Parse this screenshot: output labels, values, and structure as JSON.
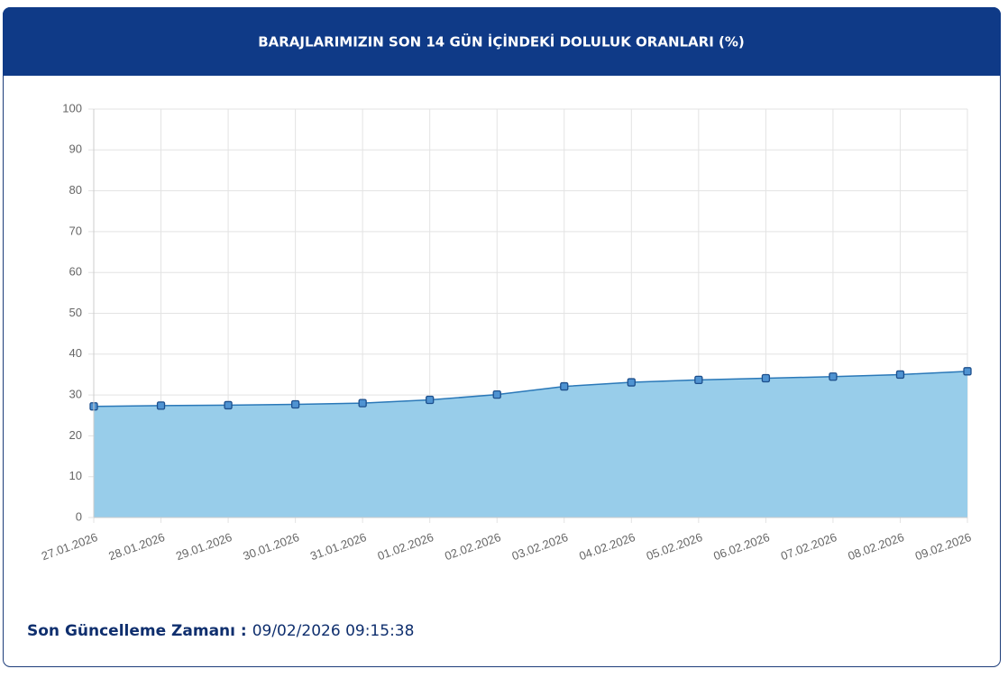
{
  "chart_data": {
    "type": "area",
    "title": "BARAJLARIMIZIN SON 14 GÜN İÇİNDEKİ DOLULUK ORANLARI (%)",
    "categories": [
      "27.01.2026",
      "28.01.2026",
      "29.01.2026",
      "30.01.2026",
      "31.01.2026",
      "01.02.2026",
      "02.02.2026",
      "03.02.2026",
      "04.02.2026",
      "05.02.2026",
      "06.02.2026",
      "07.02.2026",
      "08.02.2026",
      "09.02.2026"
    ],
    "values": [
      27.2,
      27.4,
      27.5,
      27.7,
      28.0,
      28.8,
      30.1,
      32.1,
      33.1,
      33.7,
      34.1,
      34.5,
      35.0,
      35.8
    ],
    "color": "#2a78b8",
    "fill": "#98cdea",
    "ylim": [
      0,
      100
    ],
    "yticks": [
      0,
      10,
      20,
      30,
      40,
      50,
      60,
      70,
      80,
      90,
      100
    ],
    "grid": true
  },
  "footer": {
    "label": "Son Güncelleme Zamanı :",
    "value": "09/02/2026 09:15:38"
  }
}
